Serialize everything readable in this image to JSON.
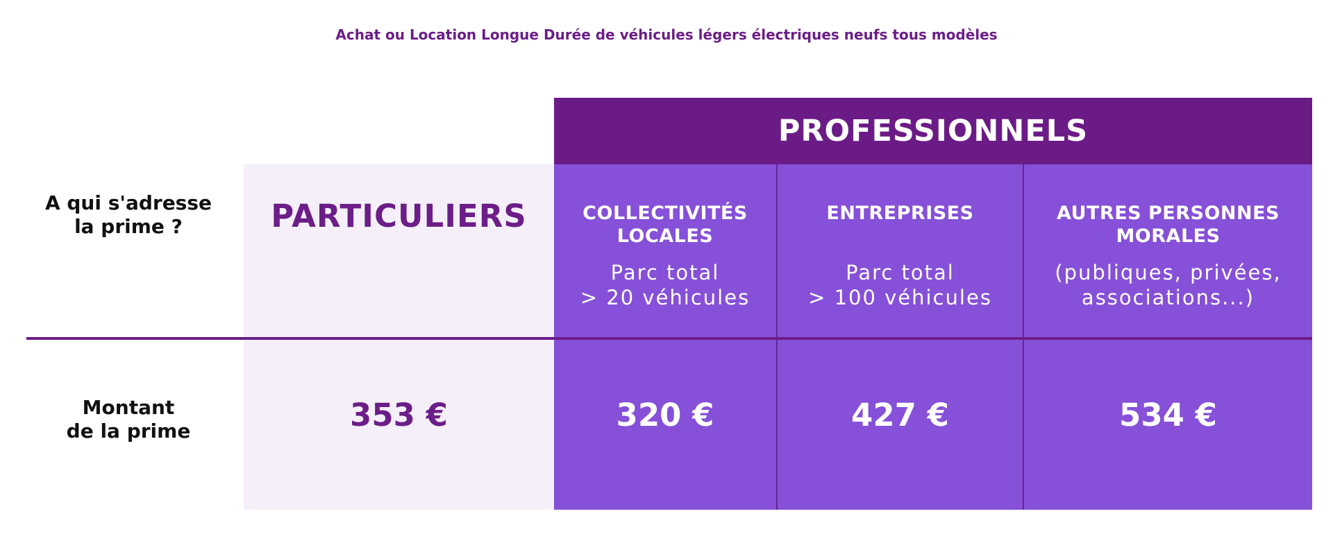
{
  "title": "Achat ou Location Longue Durée de véhicules légers électriques neufs tous modèles",
  "header": {
    "professionnels": "PROFESSIONNELS"
  },
  "rows": {
    "audience_label_1": "A qui s'adresse",
    "audience_label_2": "la prime ?",
    "amount_label_1": "Montant",
    "amount_label_2": "de la prime"
  },
  "particuliers": {
    "label": "PARTICULIERS",
    "amount": "353 €"
  },
  "collectivites": {
    "title_1": "COLLECTIVITÉS",
    "title_2": "LOCALES",
    "desc_1": "Parc total",
    "desc_2": "> 20 véhicules",
    "amount": "320 €"
  },
  "entreprises": {
    "title_1": "ENTREPRISES",
    "desc_1": "Parc total",
    "desc_2": "> 100 véhicules",
    "amount": "427 €"
  },
  "autres": {
    "title_1": "AUTRES PERSONNES",
    "title_2": "MORALES",
    "desc_1": "(publiques, privées,",
    "desc_2": "associations...)",
    "amount": "534 €"
  },
  "colors": {
    "title": "#6b1e87",
    "header_bg": "#6b1b86",
    "pro_bg": "#8650d8",
    "particuliers_bg": "#f5effa"
  }
}
